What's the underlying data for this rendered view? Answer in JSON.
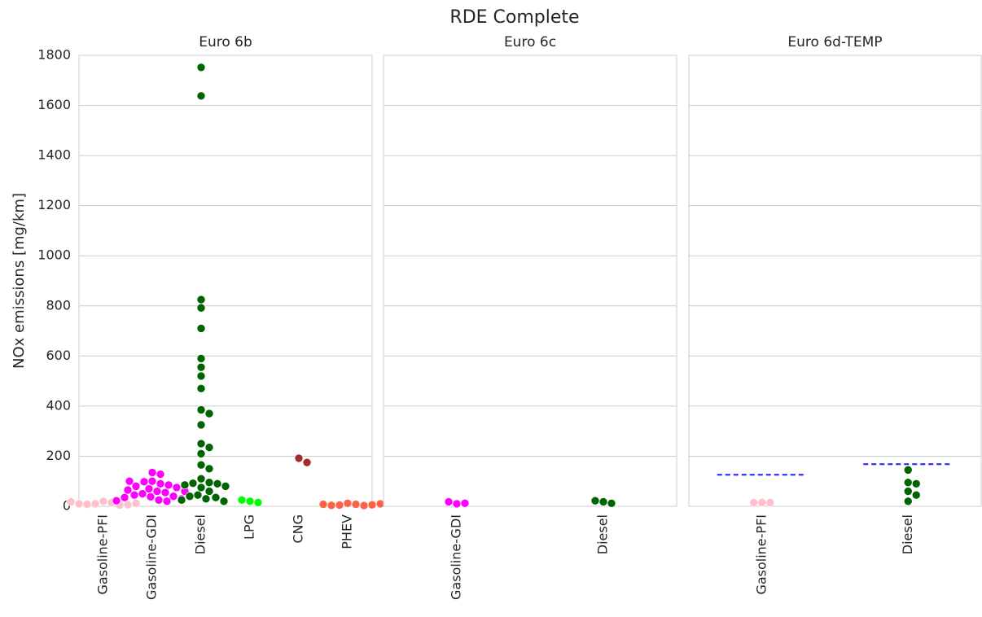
{
  "title": "RDE Complete",
  "chart_data": [
    {
      "type": "swarm",
      "title": "Euro 6b",
      "ylabel": "NOx emissions [mg/km]",
      "ylim": [
        0,
        1800
      ],
      "yticks": [
        0,
        200,
        400,
        600,
        800,
        1000,
        1200,
        1400,
        1600,
        1800
      ],
      "grid": true,
      "groups": [
        {
          "category": "Gasoline-PFI",
          "color": "#ffc0cb",
          "values": [
            20,
            15,
            10,
            5,
            8,
            6,
            10,
            12,
            18
          ]
        },
        {
          "category": "Gasoline-GDI",
          "color": "#ff00ff",
          "values": [
            135,
            128,
            100,
            98,
            90,
            85,
            80,
            75,
            70,
            65,
            60,
            55,
            50,
            45,
            40,
            38,
            35,
            30,
            25,
            22,
            20,
            100,
            60
          ]
        },
        {
          "category": "Diesel",
          "color": "#006400",
          "values": [
            1752,
            1638,
            825,
            792,
            710,
            590,
            555,
            520,
            470,
            385,
            370,
            325,
            250,
            235,
            210,
            165,
            150,
            110,
            95,
            92,
            90,
            85,
            80,
            75,
            60,
            45,
            40,
            35,
            30,
            25,
            20
          ]
        },
        {
          "category": "LPG",
          "color": "#00ff00",
          "values": [
            20,
            15,
            25
          ]
        },
        {
          "category": "CNG",
          "color": "#a52a2a",
          "values": [
            192,
            175
          ]
        },
        {
          "category": "PHEV",
          "color": "#ff6347",
          "values": [
            12,
            8,
            5,
            3,
            4,
            6,
            8,
            10
          ]
        }
      ]
    },
    {
      "type": "swarm",
      "title": "Euro 6c",
      "ylim": [
        0,
        1800
      ],
      "yticks": [
        0,
        200,
        400,
        600,
        800,
        1000,
        1200,
        1400,
        1600,
        1800
      ],
      "grid": true,
      "groups": [
        {
          "category": "Gasoline-GDI",
          "color": "#ff00ff",
          "values": [
            10,
            12,
            18
          ]
        },
        {
          "category": "Diesel",
          "color": "#006400",
          "values": [
            18,
            12,
            22
          ]
        }
      ]
    },
    {
      "type": "swarm",
      "title": "Euro 6d-TEMP",
      "ylim": [
        0,
        1800
      ],
      "yticks": [
        0,
        200,
        400,
        600,
        800,
        1000,
        1200,
        1400,
        1600,
        1800
      ],
      "grid": true,
      "limit_color": "#1a1aff",
      "groups": [
        {
          "category": "Gasoline-PFI",
          "color": "#ffc0cb",
          "values": [
            15,
            15,
            15
          ],
          "limit": 126
        },
        {
          "category": "Diesel",
          "color": "#006400",
          "values": [
            145,
            95,
            90,
            60,
            45,
            20
          ],
          "limit": 168
        }
      ]
    }
  ]
}
